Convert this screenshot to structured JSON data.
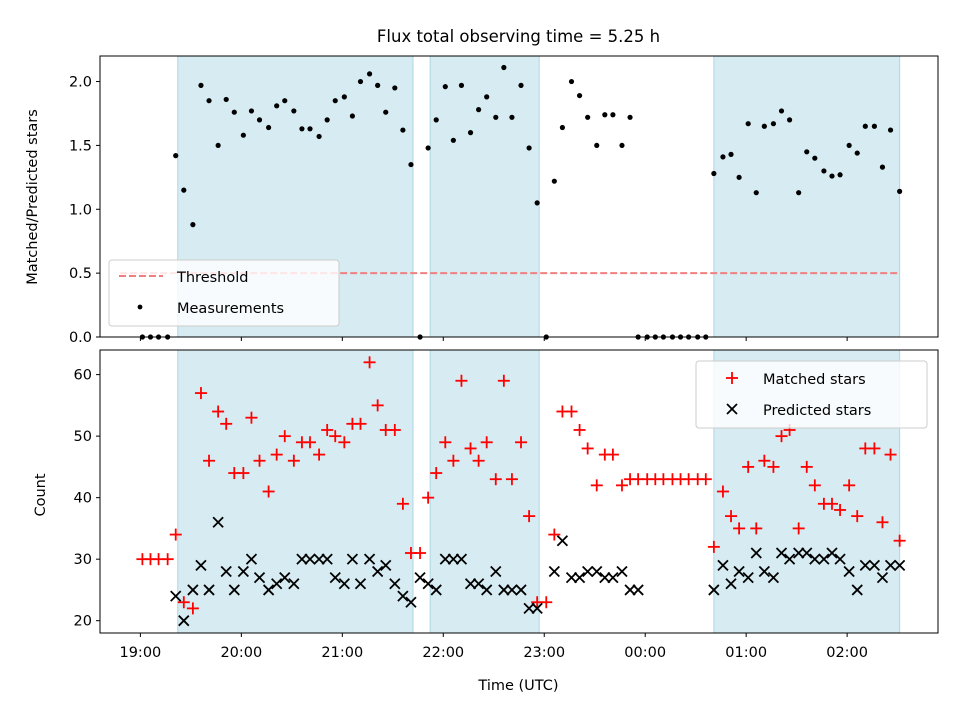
{
  "title": "Flux total observing time = 5.25 h",
  "xlabel": "Time (UTC)",
  "x_ticks": [
    "19:00",
    "20:00",
    "21:00",
    "22:00",
    "23:00",
    "00:00",
    "01:00",
    "02:00"
  ],
  "colors": {
    "shade": "#add8e6",
    "threshold": "#f08080",
    "measurements": "#000000",
    "matched": "#ff0000",
    "predicted": "#000000"
  },
  "chart_data": [
    {
      "type": "scatter",
      "ylabel": "Matched/Predicted stars",
      "xlim_hours": [
        18.6,
        26.9
      ],
      "ylim": [
        0,
        2.2
      ],
      "y_ticks": [
        0.0,
        0.5,
        1.0,
        1.5,
        2.0
      ],
      "y_tick_labels": [
        "0.0",
        "0.5",
        "1.0",
        "1.5",
        "2.0"
      ],
      "observing_windows": [
        [
          19.37,
          21.7
        ],
        [
          21.87,
          22.95
        ],
        [
          24.68,
          26.52
        ]
      ],
      "legend": {
        "position": "lower left",
        "threshold_label": "Threshold",
        "measurements_label": "Measurements"
      },
      "threshold": 0.5,
      "threshold_x_hours": [
        18.8,
        26.52
      ],
      "measurements": {
        "x_hours": [
          19.02,
          19.1,
          19.18,
          19.27,
          19.35,
          19.43,
          19.52,
          19.6,
          19.68,
          19.77,
          19.85,
          19.93,
          20.02,
          20.1,
          20.18,
          20.27,
          20.35,
          20.43,
          20.52,
          20.6,
          20.68,
          20.77,
          20.85,
          20.93,
          21.02,
          21.1,
          21.18,
          21.27,
          21.35,
          21.43,
          21.52,
          21.6,
          21.68,
          21.77,
          21.85,
          21.93,
          22.02,
          22.1,
          22.18,
          22.27,
          22.35,
          22.43,
          22.52,
          22.6,
          22.68,
          22.77,
          22.85,
          22.93,
          23.02,
          23.1,
          23.18,
          23.27,
          23.35,
          23.43,
          23.52,
          23.6,
          23.68,
          23.77,
          23.85,
          23.93,
          24.02,
          24.1,
          24.18,
          24.27,
          24.35,
          24.43,
          24.52,
          24.6,
          24.68,
          24.77,
          24.85,
          24.93,
          25.02,
          25.1,
          25.18,
          25.27,
          25.35,
          25.43,
          25.52,
          25.6,
          25.68,
          25.77,
          25.85,
          25.93,
          26.02,
          26.1,
          26.18,
          26.27,
          26.35,
          26.43,
          26.52
        ],
        "y": [
          0.0,
          0.0,
          0.0,
          0.0,
          1.42,
          1.15,
          0.88,
          1.97,
          1.85,
          1.5,
          1.86,
          1.76,
          1.58,
          1.77,
          1.7,
          1.64,
          1.81,
          1.85,
          1.77,
          1.63,
          1.63,
          1.57,
          1.7,
          1.85,
          1.88,
          1.73,
          2.0,
          2.06,
          1.97,
          1.76,
          1.95,
          1.62,
          1.35,
          0.0,
          1.48,
          1.7,
          1.96,
          1.54,
          1.97,
          1.6,
          1.78,
          1.88,
          1.72,
          2.11,
          1.72,
          1.97,
          1.48,
          1.05,
          0.0,
          1.22,
          1.64,
          2.0,
          1.89,
          1.72,
          1.5,
          1.74,
          1.74,
          1.5,
          1.72,
          0.0,
          0.0,
          0.0,
          0.0,
          0.0,
          0.0,
          0.0,
          0.0,
          0.0,
          1.28,
          1.41,
          1.43,
          1.25,
          1.67,
          1.13,
          1.65,
          1.67,
          1.77,
          1.7,
          1.13,
          1.45,
          1.4,
          1.3,
          1.26,
          1.27,
          1.5,
          1.44,
          1.65,
          1.65,
          1.33,
          1.62,
          1.14
        ]
      }
    },
    {
      "type": "scatter",
      "ylabel": "Count",
      "xlim_hours": [
        18.6,
        26.9
      ],
      "ylim": [
        18,
        64
      ],
      "y_ticks": [
        20,
        30,
        40,
        50,
        60
      ],
      "y_tick_labels": [
        "20",
        "30",
        "40",
        "50",
        "60"
      ],
      "observing_windows": [
        [
          19.37,
          21.7
        ],
        [
          21.87,
          22.95
        ],
        [
          24.68,
          26.52
        ]
      ],
      "legend": {
        "position": "upper right",
        "matched_label": "Matched stars",
        "predicted_label": "Predicted stars"
      },
      "series": [
        {
          "name": "Matched stars",
          "marker": "plus",
          "x_hours": [
            19.02,
            19.1,
            19.18,
            19.27,
            19.35,
            19.43,
            19.52,
            19.6,
            19.68,
            19.77,
            19.85,
            19.93,
            20.02,
            20.1,
            20.18,
            20.27,
            20.35,
            20.43,
            20.52,
            20.6,
            20.68,
            20.77,
            20.85,
            20.93,
            21.02,
            21.1,
            21.18,
            21.27,
            21.35,
            21.43,
            21.52,
            21.6,
            21.68,
            21.77,
            21.85,
            21.93,
            22.02,
            22.1,
            22.18,
            22.27,
            22.35,
            22.43,
            22.52,
            22.6,
            22.68,
            22.77,
            22.85,
            22.93,
            23.02,
            23.1,
            23.18,
            23.27,
            23.35,
            23.43,
            23.52,
            23.6,
            23.68,
            23.77,
            23.85,
            23.93,
            24.02,
            24.1,
            24.18,
            24.27,
            24.35,
            24.43,
            24.52,
            24.6,
            24.68,
            24.77,
            24.85,
            24.93,
            25.02,
            25.1,
            25.18,
            25.27,
            25.35,
            25.43,
            25.52,
            25.6,
            25.68,
            25.77,
            25.85,
            25.93,
            26.02,
            26.1,
            26.18,
            26.27,
            26.35,
            26.43,
            26.52
          ],
          "y": [
            30,
            30,
            30,
            30,
            34,
            23,
            22,
            57,
            46,
            54,
            52,
            44,
            44,
            53,
            46,
            41,
            47,
            50,
            46,
            49,
            49,
            47,
            51,
            50,
            49,
            52,
            52,
            62,
            55,
            51,
            51,
            39,
            31,
            31,
            40,
            44,
            49,
            46,
            59,
            48,
            46,
            49,
            43,
            59,
            43,
            49,
            37,
            23,
            23,
            34,
            54,
            54,
            51,
            48,
            42,
            47,
            47,
            42,
            43,
            43,
            43,
            43,
            43,
            43,
            43,
            43,
            43,
            43,
            32,
            41,
            37,
            35,
            45,
            35,
            46,
            45,
            50,
            51,
            35,
            45,
            42,
            39,
            39,
            38,
            42,
            37,
            48,
            48,
            36,
            47,
            33
          ]
        },
        {
          "name": "Predicted stars",
          "marker": "x",
          "x_hours": [
            19.35,
            19.43,
            19.52,
            19.6,
            19.68,
            19.77,
            19.85,
            19.93,
            20.02,
            20.1,
            20.18,
            20.27,
            20.35,
            20.43,
            20.52,
            20.6,
            20.68,
            20.77,
            20.85,
            20.93,
            21.02,
            21.1,
            21.18,
            21.27,
            21.35,
            21.43,
            21.52,
            21.6,
            21.68,
            21.77,
            21.85,
            21.93,
            22.02,
            22.1,
            22.18,
            22.27,
            22.35,
            22.43,
            22.52,
            22.6,
            22.68,
            22.77,
            22.85,
            22.93,
            23.1,
            23.18,
            23.27,
            23.35,
            23.43,
            23.52,
            23.6,
            23.68,
            23.77,
            23.85,
            23.93,
            24.68,
            24.77,
            24.85,
            24.93,
            25.02,
            25.1,
            25.18,
            25.27,
            25.35,
            25.43,
            25.52,
            25.6,
            25.68,
            25.77,
            25.85,
            25.93,
            26.02,
            26.1,
            26.18,
            26.27,
            26.35,
            26.43,
            26.52
          ],
          "y": [
            24,
            20,
            25,
            29,
            25,
            36,
            28,
            25,
            28,
            30,
            27,
            25,
            26,
            27,
            26,
            30,
            30,
            30,
            30,
            27,
            26,
            30,
            26,
            30,
            28,
            29,
            26,
            24,
            23,
            27,
            26,
            25,
            30,
            30,
            30,
            26,
            26,
            25,
            28,
            25,
            25,
            25,
            22,
            22,
            28,
            33,
            27,
            27,
            28,
            28,
            27,
            27,
            28,
            25,
            25,
            25,
            29,
            26,
            28,
            27,
            31,
            28,
            27,
            31,
            30,
            31,
            31,
            30,
            30,
            31,
            30,
            28,
            25,
            29,
            29,
            27,
            29,
            29
          ]
        }
      ]
    }
  ]
}
